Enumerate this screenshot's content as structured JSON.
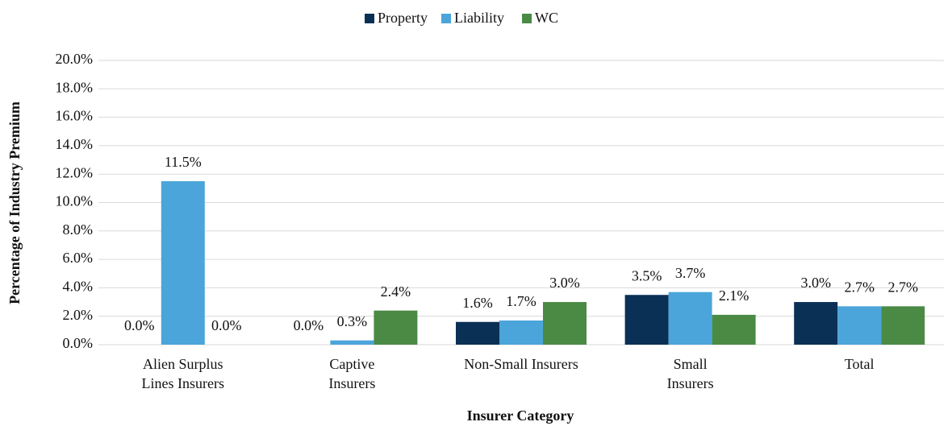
{
  "chart_data": {
    "type": "bar",
    "categories": [
      "Alien Surplus\nLines Insurers",
      "Captive\nInsurers",
      "Non-Small Insurers",
      "Small\nInsurers",
      "Total"
    ],
    "series": [
      {
        "name": "Property",
        "color": "#0b3055",
        "values": [
          0.0,
          0.0,
          1.6,
          3.5,
          3.0
        ],
        "value_labels": [
          "0.0%",
          "0.0%",
          "1.6%",
          "3.5%",
          "3.0%"
        ]
      },
      {
        "name": "Liability",
        "color": "#4ba5da",
        "values": [
          11.5,
          0.3,
          1.7,
          3.7,
          2.7
        ],
        "value_labels": [
          "11.5%",
          "0.3%",
          "1.7%",
          "3.7%",
          "2.7%"
        ]
      },
      {
        "name": "WC",
        "color": "#4a8a45",
        "values": [
          0.0,
          2.4,
          3.0,
          2.1,
          2.7
        ],
        "value_labels": [
          "0.0%",
          "2.4%",
          "3.0%",
          "2.1%",
          "2.7%"
        ]
      }
    ],
    "ylabel": "Percentage of  Industry Premium",
    "xlabel": "Insurer Category",
    "ylim": [
      0,
      20
    ],
    "yticks": [
      {
        "value": 0,
        "label": "0.0%"
      },
      {
        "value": 2,
        "label": "2.0%"
      },
      {
        "value": 4,
        "label": "4.0%"
      },
      {
        "value": 6,
        "label": "6.0%"
      },
      {
        "value": 8,
        "label": "8.0%"
      },
      {
        "value": 10,
        "label": "10.0%"
      },
      {
        "value": 12,
        "label": "12.0%"
      },
      {
        "value": 14,
        "label": "14.0%"
      },
      {
        "value": 16,
        "label": "16.0%"
      },
      {
        "value": 18,
        "label": "18.0%"
      },
      {
        "value": 20,
        "label": "20.0%"
      }
    ],
    "grid": true,
    "legend": "top"
  }
}
